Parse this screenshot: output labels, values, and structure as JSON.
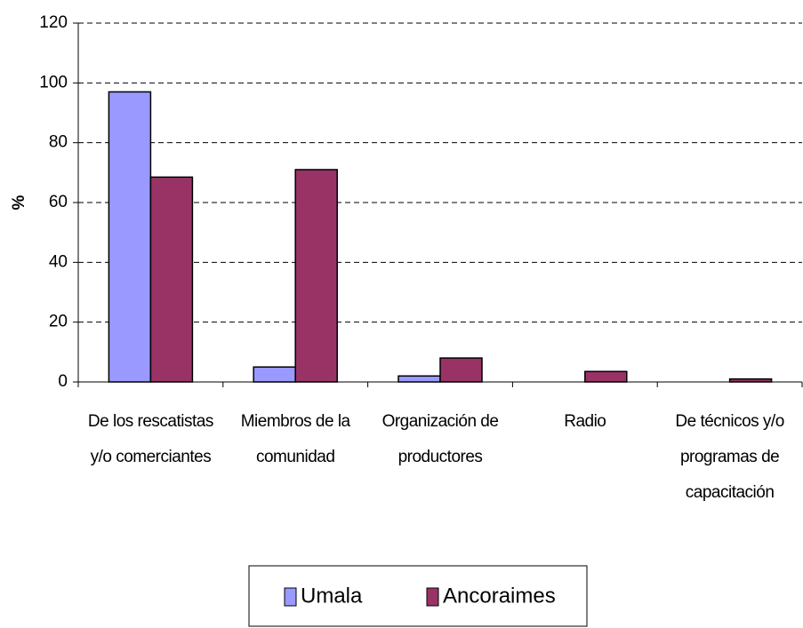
{
  "chart_data": {
    "type": "bar",
    "y_label": "%",
    "categories": [
      "De los rescatistas y/o comerciantes",
      "Miembros de la comunidad",
      "Organización de productores",
      "Radio",
      "De técnicos y/o programas de capacitación"
    ],
    "series": [
      {
        "name": "Umala",
        "color": "#9999ff",
        "values": [
          97,
          5,
          2,
          0,
          0
        ]
      },
      {
        "name": "Ancoraimes",
        "color": "#993366",
        "values": [
          68.5,
          71,
          8,
          3.5,
          1
        ]
      }
    ],
    "ylim": [
      0,
      120
    ],
    "yticks": [
      0,
      20,
      40,
      60,
      80,
      100,
      120
    ],
    "grid": true,
    "legend": "bottom"
  }
}
